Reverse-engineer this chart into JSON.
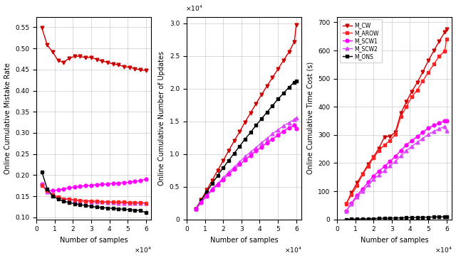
{
  "x_plot1": [
    3000,
    6000,
    9000,
    12000,
    15000,
    18000,
    21000,
    24000,
    27000,
    30000,
    33000,
    36000,
    39000,
    42000,
    45000,
    48000,
    51000,
    54000,
    57000,
    60000
  ],
  "x_plot23": [
    5000,
    8000,
    11000,
    14000,
    17000,
    20000,
    23000,
    26000,
    29000,
    32000,
    35000,
    38000,
    41000,
    44000,
    47000,
    50000,
    53000,
    56000,
    59000,
    60000
  ],
  "plot1": {
    "ylabel": "Online Cumulative Mistake Rate",
    "xlabel": "Number of samples",
    "ylim": [
      0.095,
      0.575
    ],
    "yticks": [
      0.1,
      0.15,
      0.2,
      0.25,
      0.3,
      0.35,
      0.4,
      0.45,
      0.5,
      0.55
    ],
    "xlim": [
      0,
      63000
    ],
    "xticks": [
      0,
      10000,
      20000,
      30000,
      40000,
      50000,
      60000
    ],
    "M_GW": [
      0.549,
      0.508,
      0.491,
      0.471,
      0.467,
      0.477,
      0.481,
      0.481,
      0.478,
      0.479,
      0.474,
      0.47,
      0.467,
      0.463,
      0.461,
      0.457,
      0.455,
      0.452,
      0.449,
      0.448
    ],
    "M_AROW": [
      0.175,
      0.163,
      0.153,
      0.148,
      0.144,
      0.143,
      0.141,
      0.14,
      0.139,
      0.139,
      0.138,
      0.137,
      0.137,
      0.136,
      0.136,
      0.136,
      0.135,
      0.135,
      0.135,
      0.134
    ],
    "M_SCW1": [
      0.178,
      0.163,
      0.163,
      0.165,
      0.167,
      0.17,
      0.172,
      0.173,
      0.175,
      0.176,
      0.177,
      0.178,
      0.179,
      0.18,
      0.181,
      0.182,
      0.183,
      0.185,
      0.187,
      0.19
    ],
    "M_SCW2": [
      0.178,
      0.16,
      0.152,
      0.147,
      0.144,
      0.142,
      0.14,
      0.139,
      0.138,
      0.137,
      0.136,
      0.136,
      0.135,
      0.135,
      0.134,
      0.134,
      0.133,
      0.133,
      0.133,
      0.133
    ],
    "M_ONS": [
      0.208,
      0.167,
      0.15,
      0.143,
      0.138,
      0.135,
      0.132,
      0.13,
      0.128,
      0.126,
      0.124,
      0.123,
      0.122,
      0.121,
      0.12,
      0.119,
      0.118,
      0.117,
      0.116,
      0.111
    ]
  },
  "plot2": {
    "ylabel": "Online Cumulative Number of Updates",
    "xlabel": "Number of samples",
    "ylim": [
      0,
      31000
    ],
    "yticks": [
      0,
      5000,
      10000,
      15000,
      20000,
      25000,
      30000
    ],
    "xlim": [
      0,
      63000
    ],
    "xticks": [
      0,
      10000,
      20000,
      30000,
      40000,
      50000,
      60000
    ],
    "M_GW": [
      1600,
      3000,
      4500,
      6000,
      7500,
      9000,
      10500,
      12000,
      13400,
      14900,
      16300,
      17700,
      19100,
      20400,
      21700,
      23000,
      24300,
      25600,
      27200,
      29800
    ],
    "M_ONS": [
      1600,
      2900,
      4200,
      5500,
      6700,
      7900,
      9000,
      10100,
      11200,
      12300,
      13300,
      14400,
      15400,
      16400,
      17400,
      18400,
      19300,
      20200,
      21000,
      21200
    ],
    "M_SCW2": [
      1600,
      2700,
      3700,
      4700,
      5500,
      6400,
      7200,
      8000,
      8800,
      9600,
      10300,
      11000,
      11700,
      12400,
      13100,
      13700,
      14300,
      14800,
      15300,
      15500
    ],
    "M_SCW1": [
      1600,
      2600,
      3600,
      4500,
      5300,
      6100,
      6900,
      7700,
      8400,
      9100,
      9800,
      10500,
      11100,
      11700,
      12300,
      12900,
      13500,
      14000,
      14400,
      13900
    ]
  },
  "plot3": {
    "ylabel": "Online Cumulative Time Cost (s)",
    "xlabel": "Number of samples",
    "ylim": [
      0,
      720
    ],
    "yticks": [
      0,
      100,
      200,
      300,
      400,
      500,
      600,
      700
    ],
    "xlim": [
      0,
      63000
    ],
    "xticks": [
      0,
      10000,
      20000,
      30000,
      40000,
      50000,
      60000
    ],
    "M_GW": [
      55,
      95,
      130,
      162,
      195,
      222,
      253,
      293,
      295,
      310,
      378,
      418,
      455,
      487,
      524,
      564,
      599,
      633,
      665,
      675
    ],
    "M_AROW": [
      55,
      88,
      120,
      160,
      189,
      219,
      245,
      265,
      280,
      302,
      366,
      400,
      436,
      460,
      492,
      522,
      551,
      580,
      598,
      640
    ],
    "M_SCW1": [
      30,
      58,
      86,
      108,
      132,
      154,
      172,
      188,
      206,
      224,
      245,
      265,
      280,
      295,
      310,
      324,
      334,
      342,
      350,
      350
    ],
    "M_SCW2": [
      30,
      55,
      80,
      101,
      122,
      142,
      158,
      173,
      190,
      206,
      226,
      244,
      260,
      274,
      288,
      302,
      313,
      322,
      330,
      315
    ],
    "M_ONS": [
      0.5,
      1.0,
      1.5,
      2.0,
      2.5,
      3.0,
      3.5,
      4.0,
      4.5,
      5.0,
      5.5,
      6.0,
      6.5,
      7.0,
      7.5,
      8.0,
      8.5,
      9.0,
      9.5,
      10.5
    ]
  },
  "colors": {
    "M_GW": "#cc0000",
    "M_AROW": "#ff2222",
    "M_SCW1": "#ff00ff",
    "M_SCW2": "#dd44ff",
    "M_ONS": "#000000"
  },
  "markers": {
    "M_GW": "v",
    "M_AROW": "s",
    "M_SCW1": "o",
    "M_SCW2": "^",
    "M_ONS": "s"
  },
  "legend_labels": {
    "M_GW": "M_CW",
    "M_AROW": "M_AROW",
    "M_SCW1": "M_SCW1",
    "M_SCW2": "M_SCW2",
    "M_ONS": "M_ONS"
  }
}
